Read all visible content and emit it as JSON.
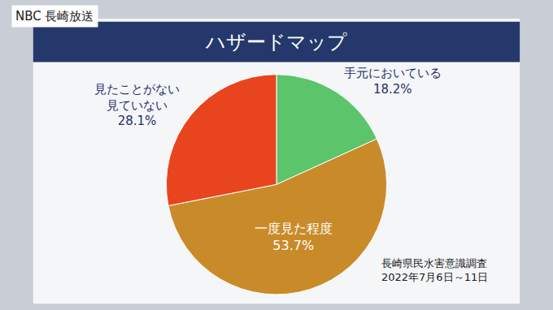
{
  "chart_data": {
    "type": "pie",
    "title": "ハザードマップ",
    "categories": [
      "手元においている",
      "一度見た程度",
      "見たことがない\n見ていない"
    ],
    "values": [
      18.2,
      53.7,
      28.1
    ],
    "value_labels": [
      "18.2%",
      "53.7%",
      "28.1%"
    ],
    "colors": [
      "#5cc46a",
      "#c98b2a",
      "#e8441e"
    ],
    "data_labels": true,
    "annotations": [
      "NBC 長崎放送",
      "長崎県民水害意識調査",
      "2022年7月6日～11日"
    ]
  }
}
